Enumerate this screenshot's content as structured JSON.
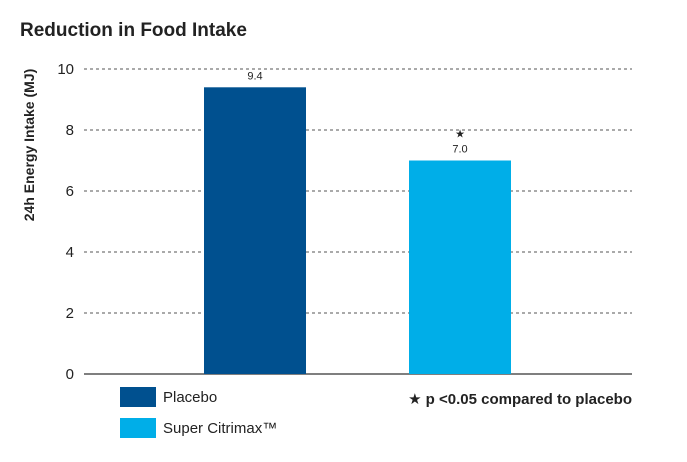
{
  "chart_data": {
    "type": "bar",
    "title": "Reduction in Food Intake",
    "xlabel": "",
    "ylabel": "24h Energy Intake (MJ)",
    "ylim": [
      0,
      10
    ],
    "yticks": [
      0,
      2,
      4,
      6,
      8,
      10
    ],
    "grid": "horizontal dashed",
    "categories": [
      "Placebo",
      "Super Citrimax™"
    ],
    "values": [
      9.4,
      7.0
    ],
    "data_labels": [
      "9.4",
      "7.0"
    ],
    "colors": [
      "#00508f",
      "#00aee8"
    ],
    "annotations": [
      {
        "category": "Super Citrimax™",
        "symbol": "★"
      }
    ],
    "legend": {
      "placement": "bottom-left",
      "entries": [
        {
          "label": "Placebo",
          "color": "#00508f"
        },
        {
          "label": "Super Citrimax™",
          "color": "#00aee8"
        }
      ]
    },
    "note": "★ p <0.05 compared to placebo"
  }
}
